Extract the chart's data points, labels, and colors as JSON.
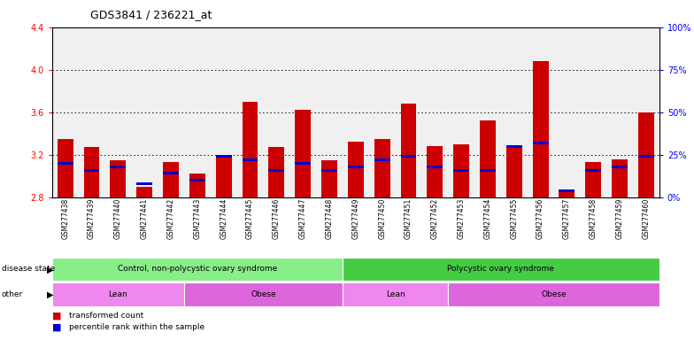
{
  "title": "GDS3841 / 236221_at",
  "samples": [
    "GSM277438",
    "GSM277439",
    "GSM277440",
    "GSM277441",
    "GSM277442",
    "GSM277443",
    "GSM277444",
    "GSM277445",
    "GSM277446",
    "GSM277447",
    "GSM277448",
    "GSM277449",
    "GSM277450",
    "GSM277451",
    "GSM277452",
    "GSM277453",
    "GSM277454",
    "GSM277455",
    "GSM277456",
    "GSM277457",
    "GSM277458",
    "GSM277459",
    "GSM277460"
  ],
  "transformed_count": [
    3.35,
    3.27,
    3.15,
    2.9,
    3.13,
    3.02,
    3.2,
    3.7,
    3.27,
    3.62,
    3.15,
    3.32,
    3.35,
    3.68,
    3.28,
    3.3,
    3.52,
    3.27,
    4.08,
    2.85,
    3.13,
    3.16,
    3.6
  ],
  "percentile_rank": [
    20,
    16,
    18,
    8,
    14,
    10,
    24,
    22,
    16,
    20,
    16,
    18,
    22,
    24,
    18,
    16,
    16,
    30,
    32,
    4,
    16,
    18,
    24
  ],
  "ylim_left": [
    2.8,
    4.4
  ],
  "ylim_right": [
    0,
    100
  ],
  "yticks_left": [
    2.8,
    3.2,
    3.6,
    4.0,
    4.4
  ],
  "yticks_right": [
    0,
    25,
    50,
    75,
    100
  ],
  "bar_color": "#cc0000",
  "marker_color": "#0000cc",
  "plot_bg_color": "#f0f0f0",
  "fig_bg_color": "#ffffff",
  "disease_state_groups": [
    {
      "label": "Control, non-polycystic ovary syndrome",
      "start": 0,
      "end": 11,
      "color": "#88ee88"
    },
    {
      "label": "Polycystic ovary syndrome",
      "start": 11,
      "end": 23,
      "color": "#44cc44"
    }
  ],
  "other_groups": [
    {
      "label": "Lean",
      "start": 0,
      "end": 5,
      "color": "#ee88ee"
    },
    {
      "label": "Obese",
      "start": 5,
      "end": 11,
      "color": "#dd66dd"
    },
    {
      "label": "Lean",
      "start": 11,
      "end": 15,
      "color": "#ee88ee"
    },
    {
      "label": "Obese",
      "start": 15,
      "end": 23,
      "color": "#dd66dd"
    }
  ],
  "disease_state_label": "disease state",
  "other_label": "other",
  "legend_items": [
    {
      "label": "transformed count",
      "color": "#cc0000"
    },
    {
      "label": "percentile rank within the sample",
      "color": "#0000cc"
    }
  ],
  "n_samples": 23,
  "bar_width": 0.6
}
